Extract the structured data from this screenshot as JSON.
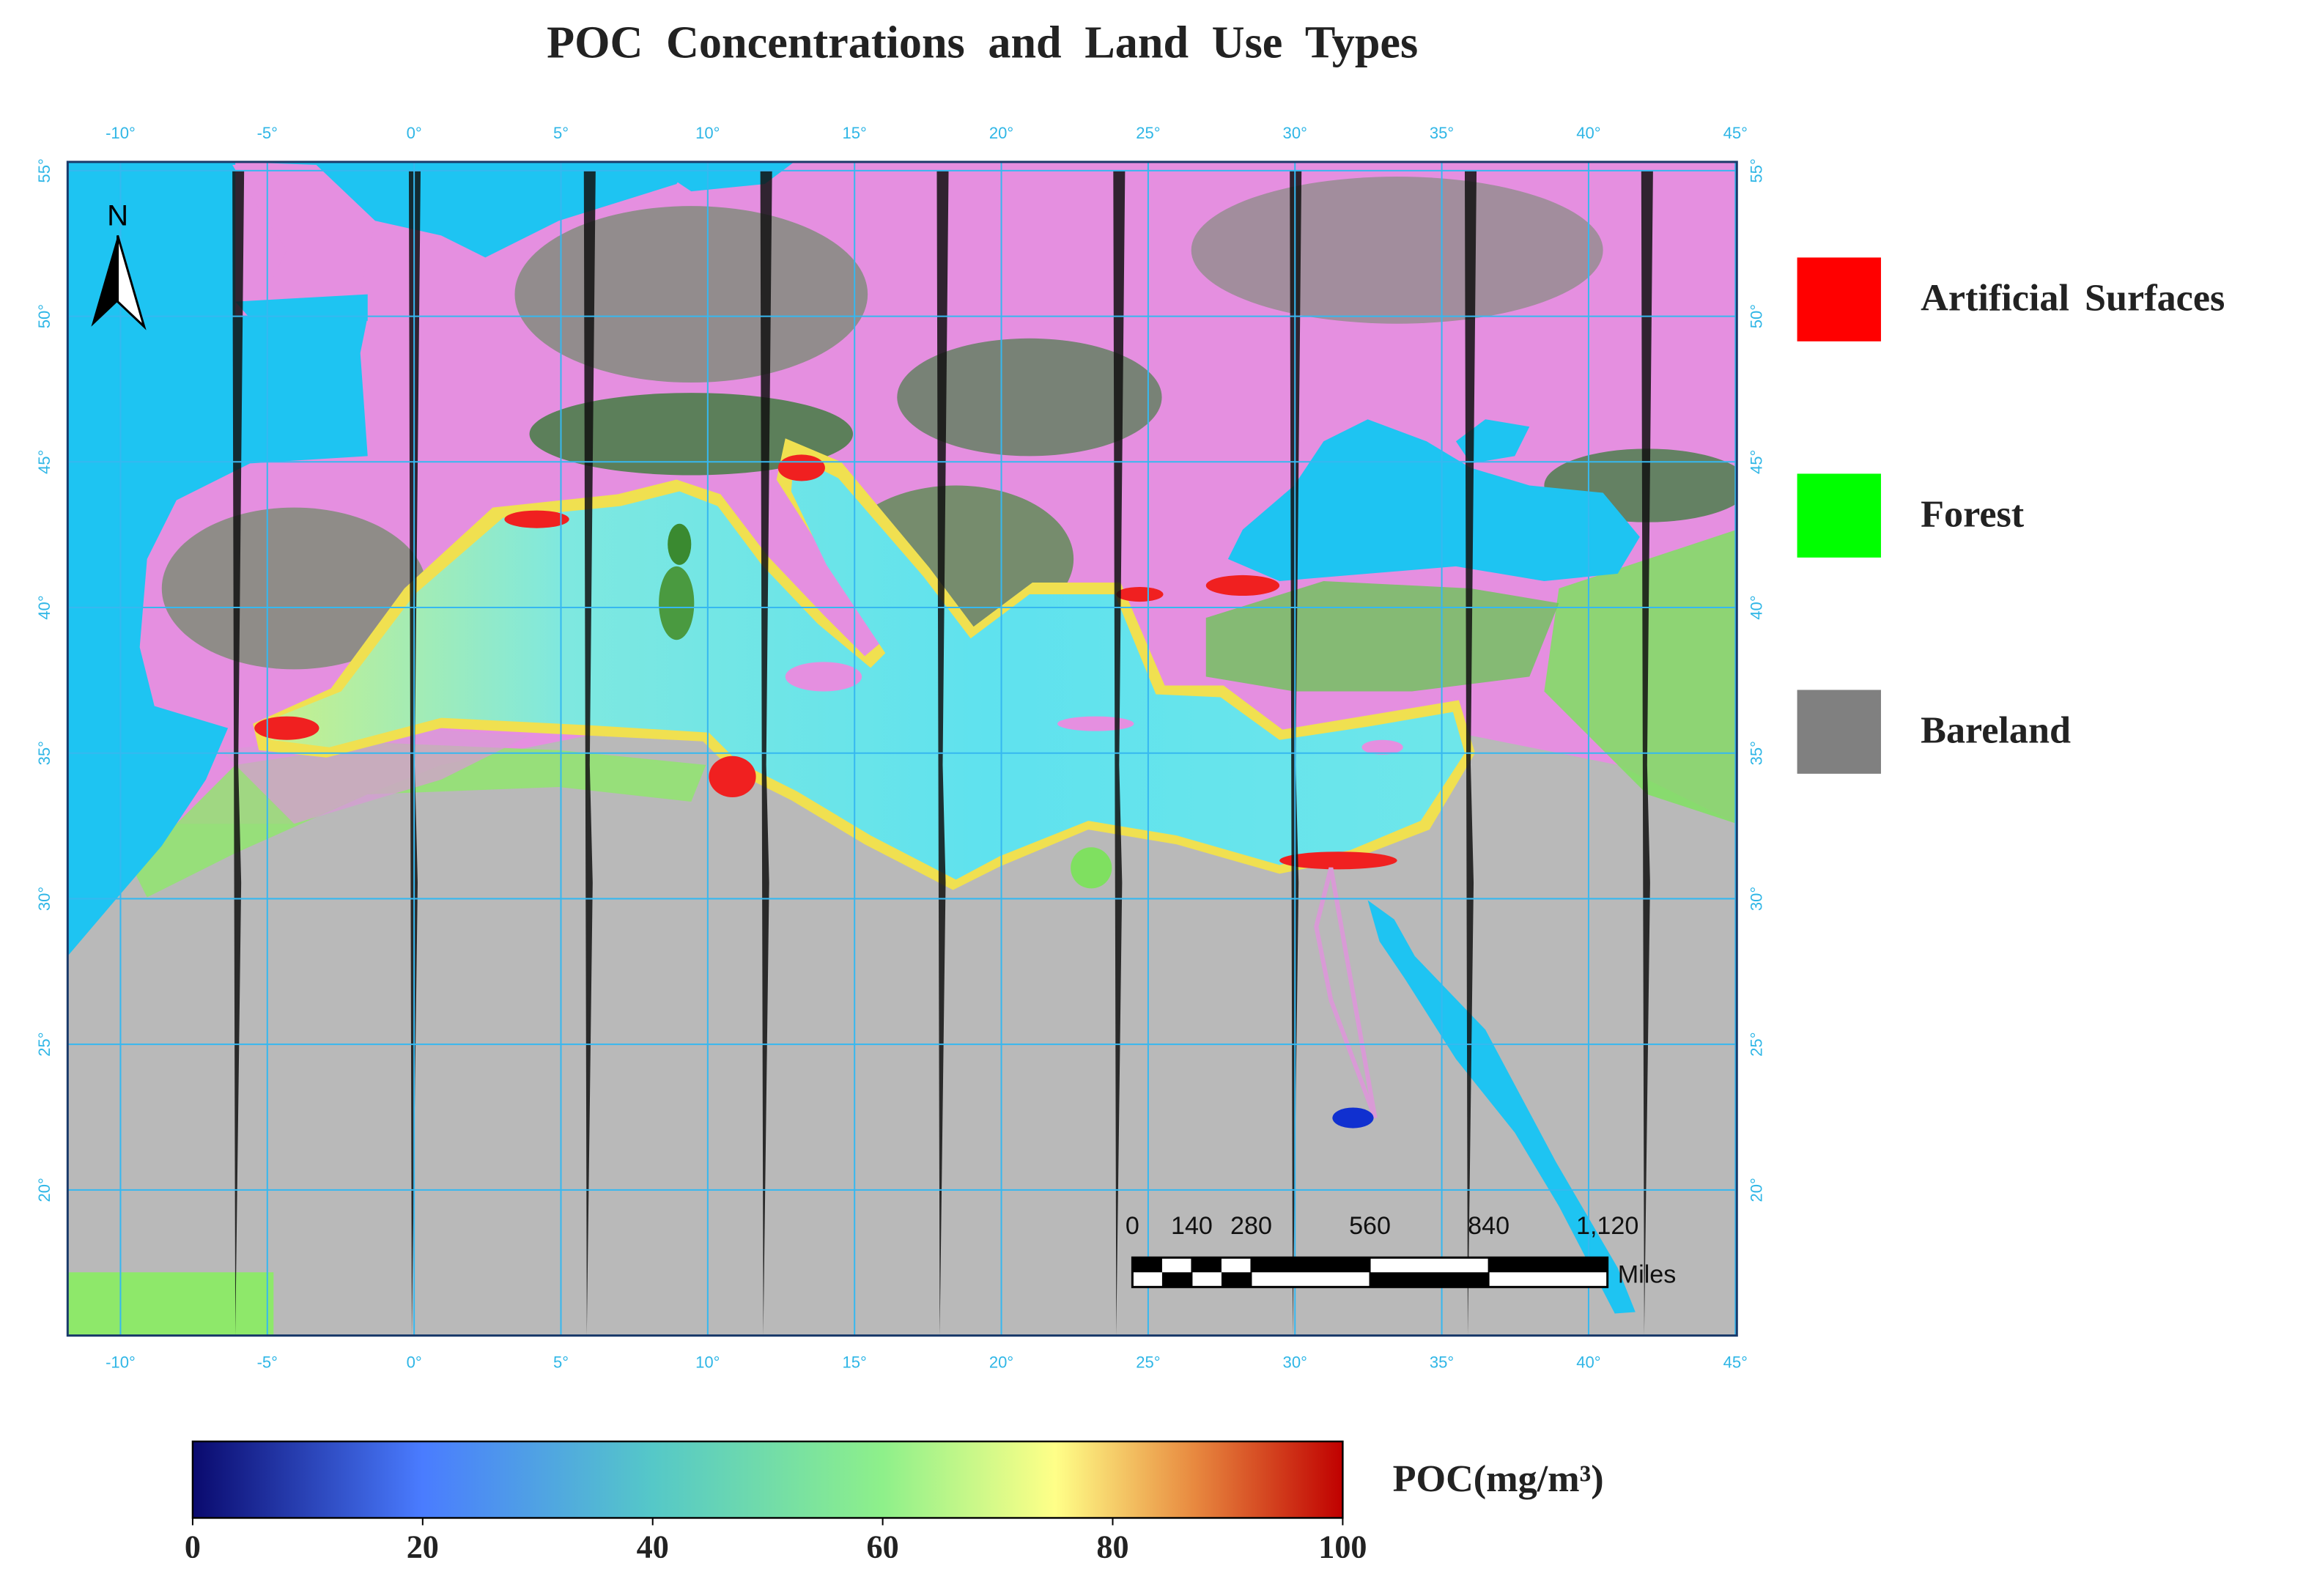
{
  "title": "POC Concentrations and Land Use Types",
  "map": {
    "lon_range": [
      -11.8,
      45.05
    ],
    "lat_range": [
      15,
      55.3
    ],
    "lon_ticks": [
      {
        "value": -10,
        "label": "-10°"
      },
      {
        "value": -5,
        "label": "-5°"
      },
      {
        "value": 0,
        "label": "0°"
      },
      {
        "value": 5,
        "label": "5°"
      },
      {
        "value": 10,
        "label": "10°"
      },
      {
        "value": 15,
        "label": "15°"
      },
      {
        "value": 20,
        "label": "20°"
      },
      {
        "value": 25,
        "label": "25°"
      },
      {
        "value": 30,
        "label": "30°"
      },
      {
        "value": 35,
        "label": "35°"
      },
      {
        "value": 40,
        "label": "40°"
      },
      {
        "value": 45,
        "label": "45°"
      }
    ],
    "lat_ticks": [
      {
        "value": 20,
        "label": "20°"
      },
      {
        "value": 25,
        "label": "25°"
      },
      {
        "value": 30,
        "label": "30°"
      },
      {
        "value": 35,
        "label": "35°"
      },
      {
        "value": 40,
        "label": "40°"
      },
      {
        "value": 45,
        "label": "45°"
      },
      {
        "value": 50,
        "label": "50°"
      },
      {
        "value": 55,
        "label": "55°"
      }
    ],
    "north_label": "N",
    "scale_bar": {
      "ticks": [
        0,
        140,
        280,
        560,
        840,
        {
          "value": 1120,
          "label": "1,120"
        }
      ],
      "unit": "Miles"
    }
  },
  "legend": [
    {
      "label": "Artificial Surfaces",
      "color": "#ff0000"
    },
    {
      "label": "Forest",
      "color": "#00ff00"
    },
    {
      "label": "Bareland",
      "color": "#808080"
    }
  ],
  "colorbar": {
    "label": "POC(mg/m³)",
    "range": [
      0,
      100
    ],
    "ticks": [
      0,
      20,
      40,
      60,
      80,
      100
    ]
  }
}
